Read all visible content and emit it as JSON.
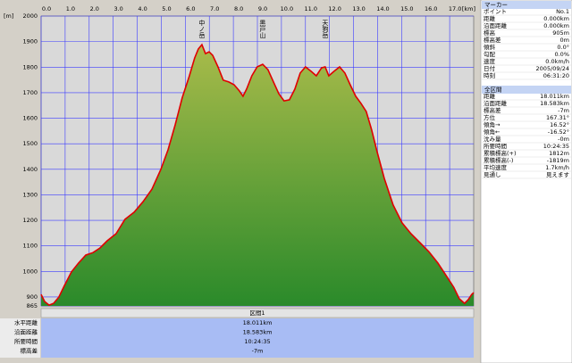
{
  "chart_data": {
    "type": "area",
    "x_unit": "[km]",
    "y_unit": "[m]",
    "x": [
      0,
      0.15,
      0.33,
      0.52,
      0.74,
      0.97,
      1.26,
      1.56,
      1.86,
      2.16,
      2.45,
      2.75,
      3.12,
      3.49,
      3.87,
      4.24,
      4.61,
      4.98,
      5.28,
      5.58,
      5.87,
      6.17,
      6.39,
      6.54,
      6.69,
      6.84,
      6.99,
      7.14,
      7.36,
      7.58,
      7.81,
      8.03,
      8.25,
      8.4,
      8.55,
      8.77,
      8.99,
      9.22,
      9.44,
      9.67,
      9.89,
      10.11,
      10.33,
      10.56,
      10.78,
      11.0,
      11.23,
      11.45,
      11.67,
      11.82,
      11.97,
      12.19,
      12.42,
      12.64,
      12.86,
      13.09,
      13.31,
      13.53,
      13.75,
      13.98,
      14.28,
      14.65,
      15.02,
      15.39,
      15.76,
      16.13,
      16.51,
      16.88,
      17.17,
      17.4,
      17.62,
      17.77,
      17.92,
      18.0
    ],
    "values": [
      910,
      882,
      868,
      875,
      900,
      945,
      998,
      1033,
      1064,
      1074,
      1092,
      1120,
      1148,
      1204,
      1232,
      1273,
      1322,
      1399,
      1476,
      1574,
      1679,
      1766,
      1836,
      1871,
      1888,
      1853,
      1860,
      1846,
      1801,
      1749,
      1742,
      1731,
      1707,
      1686,
      1714,
      1766,
      1801,
      1811,
      1790,
      1742,
      1696,
      1668,
      1672,
      1714,
      1777,
      1801,
      1784,
      1766,
      1797,
      1801,
      1766,
      1784,
      1801,
      1777,
      1731,
      1686,
      1658,
      1626,
      1556,
      1469,
      1364,
      1260,
      1190,
      1148,
      1113,
      1078,
      1033,
      980,
      938,
      893,
      875,
      889,
      910,
      917
    ],
    "color": "#e00000",
    "xlim": [
      0,
      18
    ],
    "ylim": [
      865,
      2000
    ],
    "xticks": [
      {
        "value": 0,
        "label": "0.0"
      },
      {
        "value": 1,
        "label": "1.0"
      },
      {
        "value": 2,
        "label": "2.0"
      },
      {
        "value": 3,
        "label": "3.0"
      },
      {
        "value": 4,
        "label": "4.0"
      },
      {
        "value": 5,
        "label": "5.0"
      },
      {
        "value": 6,
        "label": "6.0"
      },
      {
        "value": 7,
        "label": "7.0"
      },
      {
        "value": 8,
        "label": "8.0"
      },
      {
        "value": 9,
        "label": "9.0"
      },
      {
        "value": 10,
        "label": "10.0"
      },
      {
        "value": 11,
        "label": "11.0"
      },
      {
        "value": 12,
        "label": "12.0"
      },
      {
        "value": 13,
        "label": "13.0"
      },
      {
        "value": 14,
        "label": "14.0"
      },
      {
        "value": 15,
        "label": "15.0"
      },
      {
        "value": 16,
        "label": "16.0"
      },
      {
        "value": 17,
        "label": "17.0"
      }
    ],
    "yticks": [
      2000,
      1900,
      1800,
      1700,
      1600,
      1500,
      1400,
      1300,
      1200,
      1100,
      1000,
      900,
      865
    ],
    "grid": true,
    "annotations": [
      {
        "text": "中ノ岳",
        "x": 6.69
      },
      {
        "text": "黒戸山",
        "x": 9.22
      },
      {
        "text": "天狗岳",
        "x": 11.82
      }
    ]
  },
  "marker": {
    "title": "マーカー",
    "rows": [
      [
        "ポイント",
        "No.1"
      ],
      [
        "距離",
        "0.000km"
      ],
      [
        "沿面距離",
        "0.000km"
      ],
      [
        "標高",
        "905m"
      ],
      [
        "標高差",
        "0m"
      ],
      [
        "傾斜",
        "0.0°"
      ],
      [
        "勾配",
        "0.0%"
      ],
      [
        "速度",
        "0.0km/h"
      ],
      [
        "日付",
        "2005/09/24"
      ],
      [
        "時刻",
        "06:31:20"
      ]
    ]
  },
  "section": {
    "title": "全区間",
    "rows": [
      [
        "距離",
        "18.011km"
      ],
      [
        "沿面距離",
        "18.583km"
      ],
      [
        "標高差",
        "-7m"
      ],
      [
        "方位",
        "167.31°"
      ],
      [
        "傾角→",
        "16.52°"
      ],
      [
        "傾角←",
        "-16.52°"
      ],
      [
        "沈み量",
        "-0m"
      ],
      [
        "所要時間",
        "10:24:35"
      ],
      [
        "累積標高(+)",
        "1812m"
      ],
      [
        "累積標高(-)",
        "-1819m"
      ],
      [
        "平均速度",
        "1.7km/h"
      ],
      [
        "見通し",
        "見えます"
      ]
    ]
  },
  "summary": {
    "title": "区間1",
    "rows": [
      [
        "水平距離",
        "18.011km"
      ],
      [
        "沿面距離",
        "18.583km"
      ],
      [
        "所要時間",
        "10:24:35"
      ],
      [
        "標高差",
        "-7m"
      ]
    ]
  }
}
